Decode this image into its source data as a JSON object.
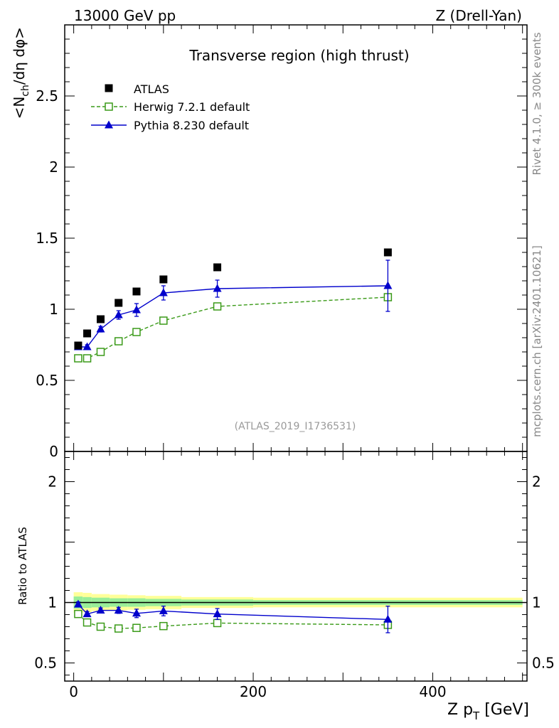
{
  "header": {
    "left": "13000 GeV pp",
    "right": "Z (Drell-Yan)"
  },
  "side_labels": {
    "rivet": "Rivet 4.1.0, ≥ 300k events",
    "mcplots": "mcplots.cern.ch [arXiv:2401.10621]"
  },
  "chart_data": {
    "type": "scatter",
    "title": "Transverse region (high thrust)",
    "watermark": "(ATLAS_2019_I1736531)",
    "xlabel": "Z p_T [GeV]",
    "xlim": [
      -10,
      505
    ],
    "x_ticks": [
      0,
      200,
      400
    ],
    "main": {
      "ylabel": "<N_ch/dη dφ>",
      "ylim": [
        0,
        3.0
      ],
      "y_ticks": [
        0,
        0.5,
        1,
        1.5,
        2,
        2.5
      ],
      "y_tick_labels": [
        "0",
        "0.5",
        "1",
        "1.5",
        "2",
        "2.5"
      ],
      "series": [
        {
          "name": "ATLAS",
          "color": "#000000",
          "marker": "filled-square",
          "x": [
            5,
            15,
            30,
            50,
            70,
            100,
            160,
            350
          ],
          "y": [
            0.745,
            0.83,
            0.93,
            1.045,
            1.125,
            1.21,
            1.295,
            1.4
          ]
        },
        {
          "name": "Herwig 7.2.1 default",
          "color": "#3a9a18",
          "marker": "open-square",
          "line": "dashed",
          "x": [
            5,
            15,
            30,
            50,
            70,
            100,
            160,
            350
          ],
          "y": [
            0.655,
            0.655,
            0.7,
            0.775,
            0.84,
            0.92,
            1.02,
            1.085
          ],
          "yerr": [
            0.01,
            0.01,
            0.01,
            0.01,
            0.015,
            0.015,
            0.015,
            0.02
          ]
        },
        {
          "name": "Pythia 8.230 default",
          "color": "#0000cc",
          "marker": "filled-triangle",
          "line": "solid",
          "x": [
            5,
            15,
            30,
            50,
            70,
            100,
            160,
            350
          ],
          "y": [
            0.735,
            0.735,
            0.86,
            0.96,
            0.995,
            1.115,
            1.145,
            1.165
          ],
          "yerr": [
            0.015,
            0.015,
            0.02,
            0.03,
            0.045,
            0.05,
            0.06,
            0.18
          ]
        }
      ]
    },
    "ratio": {
      "ylabel": "Ratio to ATLAS",
      "ylim": [
        0.35,
        2.25
      ],
      "y_ticks": [
        0.5,
        1,
        2
      ],
      "y_tick_labels": [
        "0.5",
        "1",
        "2"
      ],
      "band_edges": [
        0,
        10,
        20,
        40,
        60,
        80,
        120,
        200,
        500
      ],
      "band_inner": [
        0.05,
        0.045,
        0.04,
        0.035,
        0.035,
        0.03,
        0.025,
        0.02
      ],
      "band_outer": [
        0.085,
        0.08,
        0.07,
        0.065,
        0.06,
        0.055,
        0.045,
        0.04
      ],
      "series": [
        {
          "name": "Herwig 7.2.1 default",
          "x": [
            5,
            15,
            30,
            50,
            70,
            100,
            160,
            350
          ],
          "y": [
            0.905,
            0.835,
            0.8,
            0.785,
            0.79,
            0.805,
            0.83,
            0.815
          ],
          "yerr": [
            0.015,
            0.015,
            0.012,
            0.012,
            0.015,
            0.015,
            0.015,
            0.02
          ]
        },
        {
          "name": "Pythia 8.230 default",
          "x": [
            5,
            15,
            30,
            50,
            70,
            100,
            160,
            350
          ],
          "y": [
            0.985,
            0.905,
            0.935,
            0.935,
            0.91,
            0.93,
            0.905,
            0.86
          ],
          "yerr": [
            0.02,
            0.02,
            0.02,
            0.025,
            0.035,
            0.04,
            0.045,
            0.11
          ]
        }
      ]
    }
  }
}
